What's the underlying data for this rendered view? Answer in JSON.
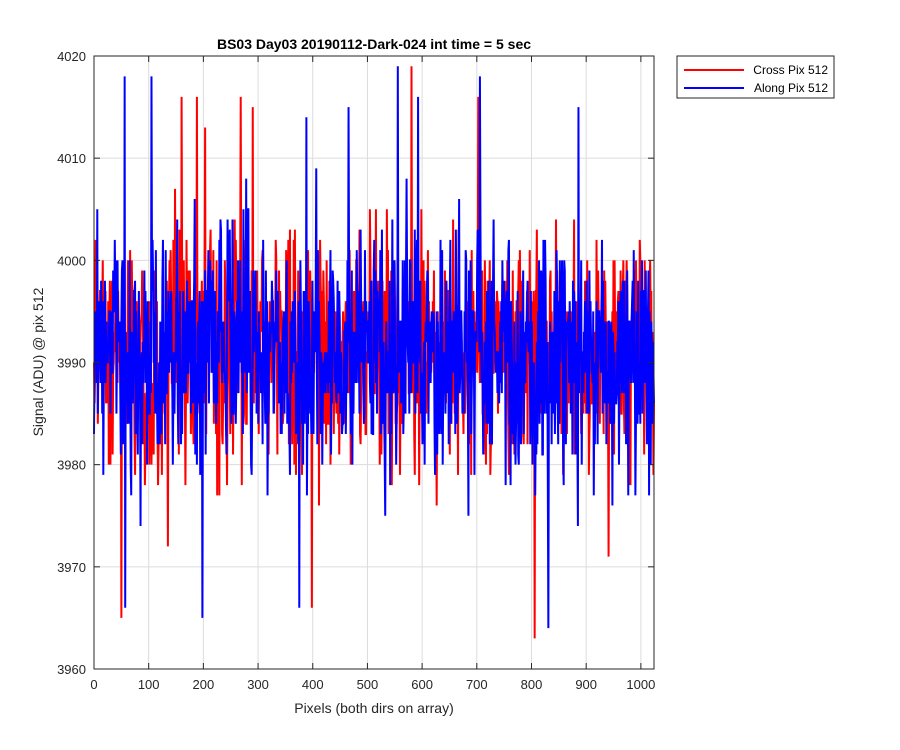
{
  "chart_data": {
    "type": "line",
    "title": "BS03 Day03 20190112-Dark-024 int time = 5 sec",
    "xlabel": "Pixels (both dirs on array)",
    "ylabel": "Signal (ADU) @ pix 512",
    "xlim": [
      0,
      1024
    ],
    "ylim": [
      3960,
      4020
    ],
    "xticks": [
      0,
      100,
      200,
      300,
      400,
      500,
      600,
      700,
      800,
      900,
      1000
    ],
    "yticks": [
      3960,
      3970,
      3980,
      3990,
      4000,
      4010,
      4020
    ],
    "grid": true,
    "legend_position": "outside-top-right",
    "series": [
      {
        "name": "Cross Pix 512",
        "color": "#ff0000",
        "mean": 3991,
        "std": 5.5,
        "min": 3963,
        "max": 4019,
        "n_points": 1024,
        "extremes": [
          {
            "x": 50,
            "y": 3965
          },
          {
            "x": 135,
            "y": 3972
          },
          {
            "x": 160,
            "y": 4016
          },
          {
            "x": 188,
            "y": 4016
          },
          {
            "x": 203,
            "y": 4013
          },
          {
            "x": 268,
            "y": 4016
          },
          {
            "x": 290,
            "y": 4015
          },
          {
            "x": 398,
            "y": 3966
          },
          {
            "x": 580,
            "y": 4019
          },
          {
            "x": 702,
            "y": 4016
          },
          {
            "x": 805,
            "y": 3963
          },
          {
            "x": 940,
            "y": 3971
          }
        ]
      },
      {
        "name": "Along Pix 512",
        "color": "#0000ff",
        "mean": 3991,
        "std": 6.0,
        "min": 3964,
        "max": 4019,
        "n_points": 1024,
        "extremes": [
          {
            "x": 56,
            "y": 4018
          },
          {
            "x": 57,
            "y": 3966
          },
          {
            "x": 105,
            "y": 4018
          },
          {
            "x": 198,
            "y": 3965
          },
          {
            "x": 375,
            "y": 3966
          },
          {
            "x": 388,
            "y": 4014
          },
          {
            "x": 465,
            "y": 4015
          },
          {
            "x": 555,
            "y": 4019
          },
          {
            "x": 592,
            "y": 4016
          },
          {
            "x": 705,
            "y": 4018
          },
          {
            "x": 830,
            "y": 3964
          },
          {
            "x": 885,
            "y": 4015
          }
        ]
      }
    ]
  }
}
